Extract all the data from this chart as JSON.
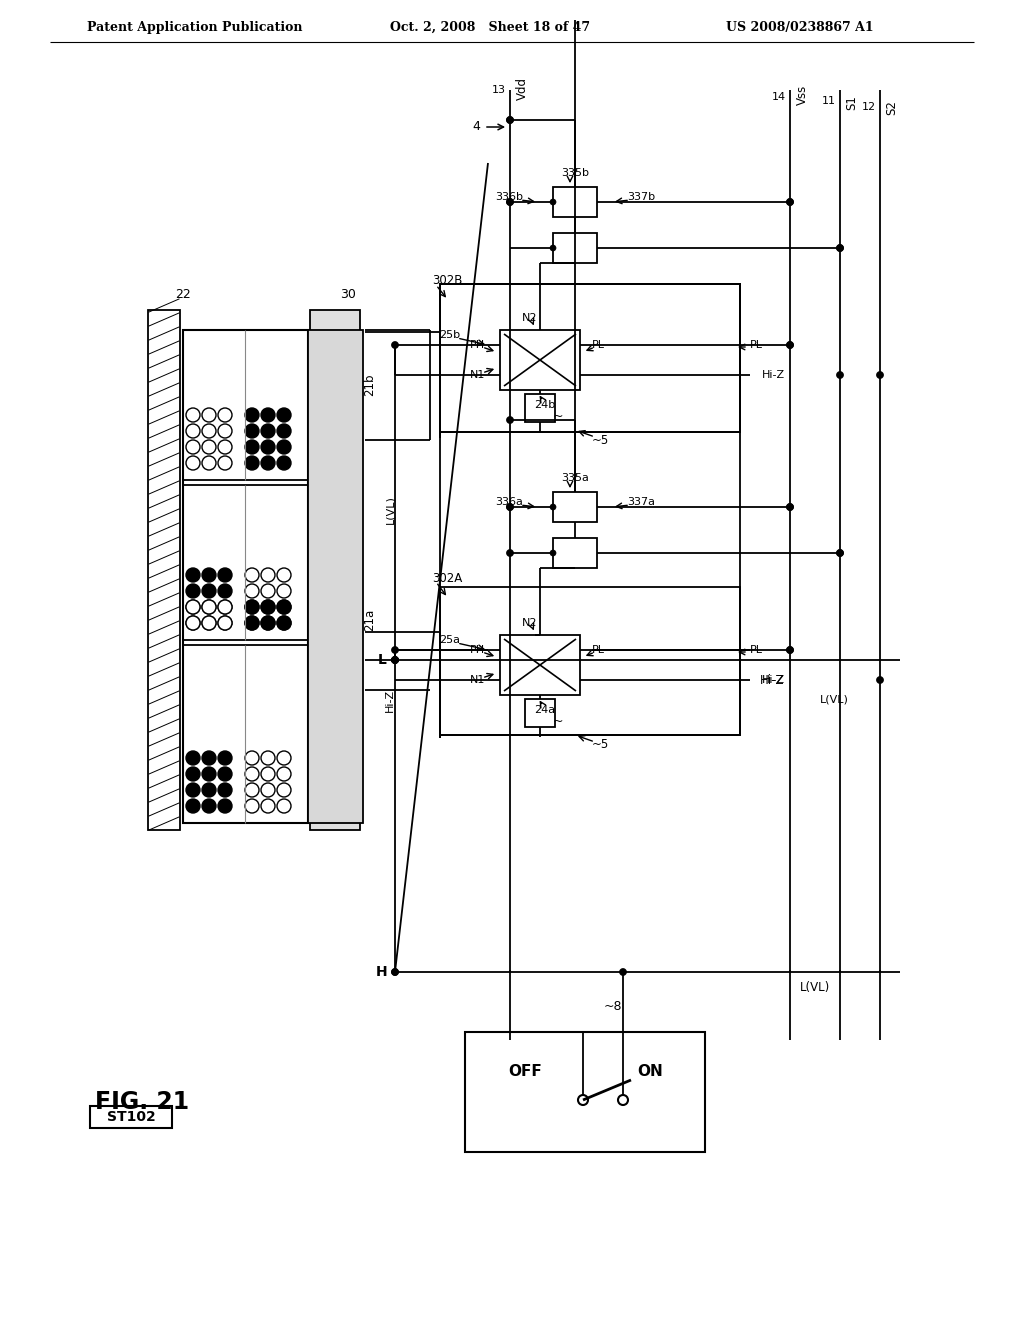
{
  "header_left": "Patent Application Publication",
  "header_mid": "Oct. 2, 2008   Sheet 18 of 47",
  "header_right": "US 2008/0238867 A1",
  "fig_label": "FIG. 21",
  "step_label": "ST102",
  "bg_color": "#ffffff"
}
